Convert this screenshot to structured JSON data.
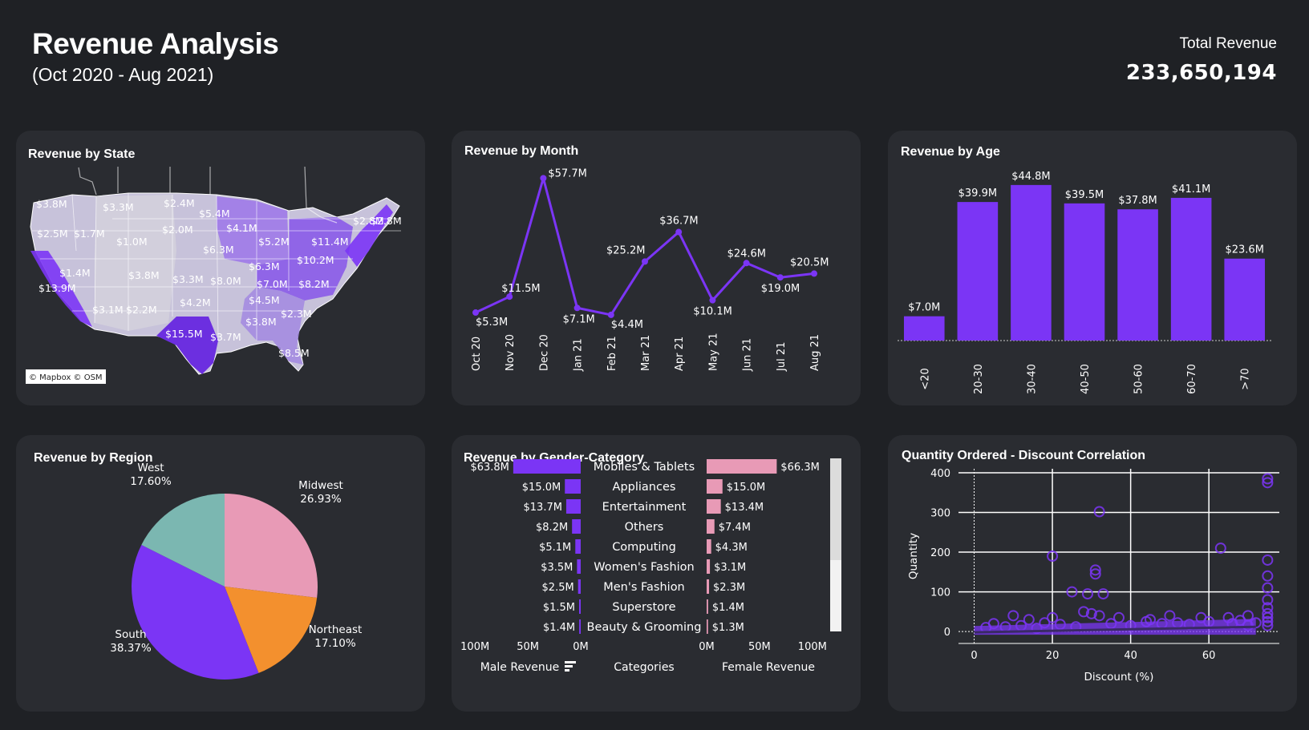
{
  "header": {
    "title": "Revenue Analysis",
    "subtitle": "(Oct 2020 - Aug 2021)",
    "total_label": "Total Revenue",
    "total_value": "233,650,194"
  },
  "colors": {
    "background": "#1f2125",
    "card": "#2a2c31",
    "purple": "#7b35f5",
    "pink": "#e89ab6",
    "orange": "#f3902e",
    "teal": "#7bb7b1"
  },
  "cards": {
    "state": "Revenue by State",
    "month": "Revenue by Month",
    "age": "Revenue by Age",
    "region": "Revenue by Region",
    "gender": "Revenue by Gender-Category",
    "scatter": "Quantity Ordered - Discount Correlation"
  },
  "map": {
    "attribution": "© Mapbox  © OSM",
    "labels": [
      "$3.8M",
      "$3.3M",
      "$2.4M",
      "$5.4M",
      "$2.8M",
      "$2.5M",
      "$1.7M",
      "$1.0M",
      "$2.0M",
      "$4.1M",
      "$5.2M",
      "$11.4M",
      "$2.8M",
      "$6.3M",
      "$10.2M",
      "$1.4M",
      "$3.8M",
      "$3.3M",
      "$8.0M",
      "$6.3M",
      "$7.0M",
      "$8.2M",
      "$13.9M",
      "$4.2M",
      "$4.5M",
      "$3.1M",
      "$2.2M",
      "$2.3M",
      "$3.8M",
      "$15.5M",
      "$3.7M",
      "$8.5M"
    ]
  },
  "chart_data": [
    {
      "type": "line",
      "title": "Revenue by Month",
      "categories": [
        "Oct 20",
        "Nov 20",
        "Dec 20",
        "Jan 21",
        "Feb 21",
        "Mar 21",
        "Apr 21",
        "May 21",
        "Jun 21",
        "Jul 21",
        "Aug 21"
      ],
      "values": [
        5.3,
        11.5,
        57.7,
        7.1,
        4.4,
        25.2,
        36.7,
        10.1,
        24.6,
        19.0,
        20.5
      ],
      "data_labels": [
        "$5.3M",
        "$11.5M",
        "$57.7M",
        "$7.1M",
        "$4.4M",
        "$25.2M",
        "$36.7M",
        "$10.1M",
        "$24.6M",
        "$19.0M",
        "$20.5M"
      ],
      "color": "#7b35f5"
    },
    {
      "type": "bar",
      "title": "Revenue by Age",
      "categories": [
        "<20",
        "20-30",
        "30-40",
        "40-50",
        "50-60",
        "60-70",
        ">70"
      ],
      "values": [
        7.0,
        39.9,
        44.8,
        39.5,
        37.8,
        41.1,
        23.6
      ],
      "data_labels": [
        "$7.0M",
        "$39.9M",
        "$44.8M",
        "$39.5M",
        "$37.8M",
        "$41.1M",
        "$23.6M"
      ],
      "color": "#7b35f5"
    },
    {
      "type": "pie",
      "title": "Revenue by Region",
      "labels": [
        "Midwest",
        "Northeast",
        "South",
        "West"
      ],
      "values": [
        26.93,
        17.1,
        38.37,
        17.6
      ],
      "pct_labels": [
        "26.93%",
        "17.10%",
        "38.37%",
        "17.60%"
      ],
      "colors": [
        "#e89ab6",
        "#f3902e",
        "#7b35f5",
        "#7bb7b1"
      ]
    },
    {
      "type": "bar",
      "title": "Revenue by Gender-Category",
      "categories": [
        "Mobiles & Tablets",
        "Appliances",
        "Entertainment",
        "Others",
        "Computing",
        "Women's Fashion",
        "Men's Fashion",
        "Superstore",
        "Beauty & Grooming"
      ],
      "series": [
        {
          "name": "Male Revenue",
          "values": [
            63.8,
            15.0,
            13.7,
            8.2,
            5.1,
            3.5,
            2.5,
            1.5,
            1.4
          ],
          "labels": [
            "$63.8M",
            "$15.0M",
            "$13.7M",
            "$8.2M",
            "$5.1M",
            "$3.5M",
            "$2.5M",
            "$1.5M",
            "$1.4M"
          ],
          "color": "#7b35f5"
        },
        {
          "name": "Female Revenue",
          "values": [
            66.3,
            15.0,
            13.4,
            7.4,
            4.3,
            3.1,
            2.3,
            1.4,
            1.3
          ],
          "labels": [
            "$66.3M",
            "$15.0M",
            "$13.4M",
            "$7.4M",
            "$4.3M",
            "$3.1M",
            "$2.3M",
            "$1.4M",
            "$1.3M"
          ],
          "color": "#e89ab6"
        }
      ],
      "center_label": "Categories",
      "left_ticks": [
        "100M",
        "50M",
        "0M"
      ],
      "right_ticks": [
        "0M",
        "50M",
        "100M"
      ]
    },
    {
      "type": "scatter",
      "title": "Quantity Ordered - Discount Correlation",
      "xlabel": "Discount (%)",
      "ylabel": "Quantity",
      "xlim": [
        -4,
        78
      ],
      "ylim": [
        -30,
        410
      ],
      "xticks": [
        0,
        20,
        40,
        60
      ],
      "yticks": [
        0,
        100,
        200,
        300,
        400
      ],
      "points": [
        [
          75,
          385
        ],
        [
          75,
          375
        ],
        [
          32,
          302
        ],
        [
          20,
          190
        ],
        [
          63,
          210
        ],
        [
          25,
          100
        ],
        [
          31,
          155
        ],
        [
          31,
          145
        ],
        [
          33,
          95
        ],
        [
          29,
          95
        ],
        [
          30,
          45
        ],
        [
          32,
          40
        ],
        [
          28,
          50
        ],
        [
          10,
          40
        ],
        [
          14,
          30
        ],
        [
          20,
          35
        ],
        [
          37,
          35
        ],
        [
          45,
          30
        ],
        [
          50,
          40
        ],
        [
          58,
          35
        ],
        [
          65,
          35
        ],
        [
          70,
          40
        ],
        [
          75,
          180
        ],
        [
          75,
          140
        ],
        [
          75,
          110
        ],
        [
          75,
          80
        ],
        [
          75,
          60
        ],
        [
          75,
          45
        ],
        [
          75,
          35
        ],
        [
          75,
          25
        ],
        [
          75,
          15
        ],
        [
          3,
          10
        ],
        [
          8,
          12
        ],
        [
          12,
          15
        ],
        [
          16,
          8
        ],
        [
          22,
          18
        ],
        [
          26,
          12
        ],
        [
          35,
          20
        ],
        [
          40,
          15
        ],
        [
          44,
          25
        ],
        [
          48,
          20
        ],
        [
          52,
          22
        ],
        [
          55,
          18
        ],
        [
          60,
          25
        ],
        [
          66,
          20
        ],
        [
          68,
          28
        ],
        [
          70,
          15
        ],
        [
          72,
          22
        ],
        [
          5,
          20
        ],
        [
          18,
          22
        ]
      ],
      "trend": [
        [
          0,
          -2
        ],
        [
          72,
          12
        ]
      ],
      "color": "#7b35f5",
      "grid": true
    }
  ]
}
